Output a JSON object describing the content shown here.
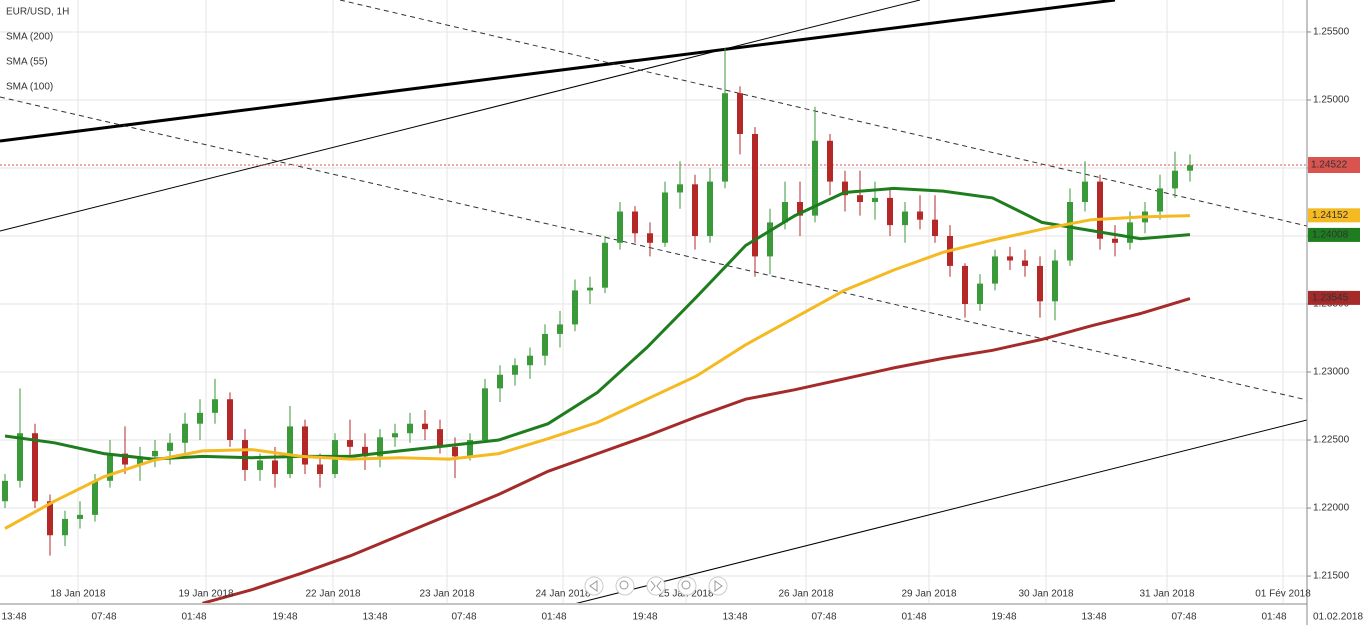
{
  "chart_data": {
    "type": "candlestick",
    "title": "EUR/USD, 1H",
    "up_color": "#3a9a3a",
    "down_color": "#b42828",
    "ylim": [
      1.21324,
      1.25735
    ],
    "yticks": [
      {
        "value": 1.215,
        "label": "1.21500"
      },
      {
        "value": 1.22,
        "label": "1.22000"
      },
      {
        "value": 1.225,
        "label": "1.22500"
      },
      {
        "value": 1.23,
        "label": "1.23000"
      },
      {
        "value": 1.235,
        "label": "1.23500"
      },
      {
        "value": 1.24,
        "label": "1.24000"
      },
      {
        "value": 1.245,
        "label": "1.24500"
      },
      {
        "value": 1.25,
        "label": "1.25000"
      },
      {
        "value": 1.255,
        "label": "1.25500"
      }
    ],
    "grid": true,
    "date_labels": [
      "18 Jan 2018",
      "19 Jan 2018",
      "22 Jan 2018",
      "23 Jan 2018",
      "24 Jan 2018",
      "25 Jan 2018",
      "26 Jan 2018",
      "29 Jan 2018",
      "30 Jan 2018",
      "31 Jan 2018",
      "01 Fév 2018"
    ],
    "time_labels": [
      "13:48",
      "07:48",
      "01:48",
      "19:48",
      "13:48",
      "07:48",
      "01:48",
      "19:48",
      "13:48",
      "07:48",
      "01:48",
      "19:48",
      "13:48",
      "07:48",
      "01:48",
      "01.02.2018"
    ],
    "last_price": {
      "value": 1.24522,
      "color": "#d9534f"
    },
    "ohlc": [
      [
        1.2205,
        1.2225,
        1.22,
        1.222
      ],
      [
        1.222,
        1.2288,
        1.2215,
        1.2255
      ],
      [
        1.2255,
        1.2262,
        1.22,
        1.2205
      ],
      [
        1.2205,
        1.221,
        1.2165,
        1.218
      ],
      [
        1.218,
        1.2198,
        1.2172,
        1.2192
      ],
      [
        1.2192,
        1.2205,
        1.2185,
        1.2195
      ],
      [
        1.2195,
        1.2225,
        1.219,
        1.222
      ],
      [
        1.222,
        1.225,
        1.2215,
        1.224
      ],
      [
        1.224,
        1.226,
        1.2225,
        1.2232
      ],
      [
        1.2232,
        1.2245,
        1.222,
        1.2238
      ],
      [
        1.2238,
        1.225,
        1.223,
        1.2242
      ],
      [
        1.2242,
        1.2255,
        1.2232,
        1.2248
      ],
      [
        1.2248,
        1.227,
        1.224,
        1.2262
      ],
      [
        1.2262,
        1.228,
        1.225,
        1.227
      ],
      [
        1.227,
        1.2295,
        1.2262,
        1.228
      ],
      [
        1.228,
        1.2285,
        1.2245,
        1.225
      ],
      [
        1.225,
        1.2258,
        1.222,
        1.2228
      ],
      [
        1.2228,
        1.224,
        1.222,
        1.2235
      ],
      [
        1.2235,
        1.2245,
        1.2215,
        1.2225
      ],
      [
        1.2225,
        1.2275,
        1.2222,
        1.226
      ],
      [
        1.226,
        1.2265,
        1.2225,
        1.2232
      ],
      [
        1.2232,
        1.224,
        1.2215,
        1.2225
      ],
      [
        1.2225,
        1.2255,
        1.2222,
        1.225
      ],
      [
        1.225,
        1.2265,
        1.2238,
        1.2245
      ],
      [
        1.2245,
        1.2255,
        1.2228,
        1.2238
      ],
      [
        1.2238,
        1.2258,
        1.223,
        1.2252
      ],
      [
        1.2252,
        1.2262,
        1.2245,
        1.2255
      ],
      [
        1.2255,
        1.227,
        1.2248,
        1.2262
      ],
      [
        1.2262,
        1.2272,
        1.225,
        1.2258
      ],
      [
        1.2258,
        1.2265,
        1.224,
        1.2245
      ],
      [
        1.2245,
        1.2252,
        1.2222,
        1.2238
      ],
      [
        1.2238,
        1.2255,
        1.2235,
        1.225
      ],
      [
        1.225,
        1.2295,
        1.2248,
        1.2288
      ],
      [
        1.2288,
        1.2305,
        1.2278,
        1.2298
      ],
      [
        1.2298,
        1.231,
        1.229,
        1.2305
      ],
      [
        1.2305,
        1.2318,
        1.2295,
        1.2312
      ],
      [
        1.2312,
        1.2335,
        1.2305,
        1.2328
      ],
      [
        1.2328,
        1.2345,
        1.2318,
        1.2335
      ],
      [
        1.2335,
        1.2368,
        1.233,
        1.236
      ],
      [
        1.236,
        1.237,
        1.235,
        1.2362
      ],
      [
        1.2362,
        1.24,
        1.2358,
        1.2395
      ],
      [
        1.2395,
        1.2425,
        1.239,
        1.2418
      ],
      [
        1.2418,
        1.2422,
        1.2395,
        1.2402
      ],
      [
        1.2402,
        1.241,
        1.2385,
        1.2395
      ],
      [
        1.2395,
        1.244,
        1.2392,
        1.2432
      ],
      [
        1.2432,
        1.2455,
        1.242,
        1.2438
      ],
      [
        1.2438,
        1.2445,
        1.239,
        1.24
      ],
      [
        1.24,
        1.245,
        1.2395,
        1.244
      ],
      [
        1.244,
        1.2538,
        1.2435,
        1.2505
      ],
      [
        1.2505,
        1.251,
        1.246,
        1.2475
      ],
      [
        1.2475,
        1.248,
        1.237,
        1.2385
      ],
      [
        1.2385,
        1.242,
        1.2372,
        1.241
      ],
      [
        1.241,
        1.244,
        1.2405,
        1.2425
      ],
      [
        1.2425,
        1.244,
        1.24,
        1.2415
      ],
      [
        1.2415,
        1.2495,
        1.241,
        1.247
      ],
      [
        1.247,
        1.2475,
        1.243,
        1.244
      ],
      [
        1.244,
        1.2448,
        1.2418,
        1.243
      ],
      [
        1.243,
        1.2448,
        1.2415,
        1.2425
      ],
      [
        1.2425,
        1.244,
        1.2412,
        1.2428
      ],
      [
        1.2428,
        1.2435,
        1.24,
        1.2408
      ],
      [
        1.2408,
        1.2425,
        1.2395,
        1.2418
      ],
      [
        1.2418,
        1.243,
        1.2405,
        1.2412
      ],
      [
        1.2412,
        1.243,
        1.2395,
        1.24
      ],
      [
        1.24,
        1.2408,
        1.237,
        1.2378
      ],
      [
        1.2378,
        1.238,
        1.234,
        1.235
      ],
      [
        1.235,
        1.2372,
        1.2345,
        1.2365
      ],
      [
        1.2365,
        1.239,
        1.236,
        1.2385
      ],
      [
        1.2385,
        1.2392,
        1.2375,
        1.2382
      ],
      [
        1.2382,
        1.239,
        1.237,
        1.2378
      ],
      [
        1.2378,
        1.2385,
        1.234,
        1.2352
      ],
      [
        1.2352,
        1.239,
        1.2338,
        1.2382
      ],
      [
        1.2382,
        1.2435,
        1.2378,
        1.2425
      ],
      [
        1.2425,
        1.2455,
        1.2418,
        1.244
      ],
      [
        1.244,
        1.2445,
        1.239,
        1.2398
      ],
      [
        1.2398,
        1.2408,
        1.2385,
        1.2395
      ],
      [
        1.2395,
        1.2418,
        1.239,
        1.241
      ],
      [
        1.241,
        1.2425,
        1.2402,
        1.2418
      ],
      [
        1.2418,
        1.2445,
        1.2412,
        1.2435
      ],
      [
        1.2435,
        1.2462,
        1.2428,
        1.2448
      ],
      [
        1.2448,
        1.246,
        1.244,
        1.2452
      ]
    ],
    "series": [
      {
        "name": "SMA (200)",
        "color": "#a52a2a",
        "last": 1.23545,
        "values": [
          null,
          null,
          null,
          null,
          1.213,
          1.214,
          1.2152,
          1.2165,
          1.218,
          1.2195,
          1.221,
          1.2227,
          1.224,
          1.2253,
          1.2267,
          1.228,
          1.2287,
          1.2295,
          1.2303,
          1.231,
          1.2316,
          1.2324,
          1.2334,
          1.2343,
          1.2354
        ]
      },
      {
        "name": "SMA (55)",
        "color": "#1e7d1e",
        "last": 1.24008,
        "values": [
          1.2253,
          1.2248,
          1.224,
          1.2236,
          1.2238,
          1.2237,
          1.2238,
          1.2238,
          1.2242,
          1.2246,
          1.225,
          1.2262,
          1.2285,
          1.2318,
          1.2355,
          1.2393,
          1.2415,
          1.2432,
          1.2435,
          1.2433,
          1.2428,
          1.241,
          1.2404,
          1.2398,
          1.2401
        ]
      },
      {
        "name": "SMA (100)",
        "color": "#f5b921",
        "last": 1.24152,
        "values": [
          1.2185,
          1.2205,
          1.2223,
          1.2235,
          1.2242,
          1.2243,
          1.2238,
          1.2236,
          1.2237,
          1.2236,
          1.224,
          1.2251,
          1.2263,
          1.228,
          1.2297,
          1.232,
          1.234,
          1.236,
          1.2375,
          1.2388,
          1.2397,
          1.2405,
          1.2412,
          1.2414,
          1.2415
        ]
      }
    ]
  }
}
